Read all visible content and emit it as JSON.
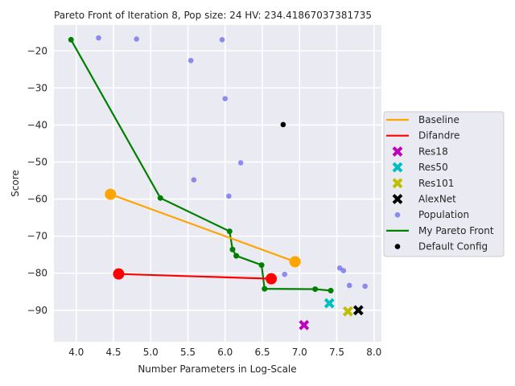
{
  "chart_data": {
    "type": "scatter",
    "title": "Pareto Front of Iteration 8, Pop size: 24 HV: 234.41867037381735",
    "xlabel": "Number Parameters in Log-Scale",
    "ylabel": "Score",
    "xlim": [
      3.7,
      8.1
    ],
    "ylim": [
      -98.5,
      -13
    ],
    "xticks": [
      4.0,
      4.5,
      5.0,
      5.5,
      6.0,
      6.5,
      7.0,
      7.5,
      8.0
    ],
    "xtick_labels": [
      "4.0",
      "4.5",
      "5.0",
      "5.5",
      "6.0",
      "6.5",
      "7.0",
      "7.5",
      "8.0"
    ],
    "yticks": [
      -90,
      -80,
      -70,
      -60,
      -50,
      -40,
      -30,
      -20
    ],
    "ytick_labels": [
      "−90",
      "−80",
      "−70",
      "−60",
      "−50",
      "−40",
      "−30",
      "−20"
    ],
    "grid": true,
    "legend_position": "right",
    "series": [
      {
        "name": "Baseline",
        "kind": "line",
        "color": "#FFA500",
        "marker": "big-circle",
        "points": [
          [
            4.46,
            -58.7
          ],
          [
            6.94,
            -76.9
          ]
        ]
      },
      {
        "name": "Difandre",
        "kind": "line",
        "color": "#FF0000",
        "marker": "big-circle",
        "points": [
          [
            4.57,
            -80.2
          ],
          [
            6.62,
            -81.5
          ]
        ]
      },
      {
        "name": "Res18",
        "kind": "x",
        "color": "#BF00BF",
        "points": [
          [
            7.06,
            -94.0
          ]
        ]
      },
      {
        "name": "Res50",
        "kind": "x",
        "color": "#00BFBF",
        "points": [
          [
            7.4,
            -88.1
          ]
        ]
      },
      {
        "name": "Res101",
        "kind": "x",
        "color": "#BFBF00",
        "points": [
          [
            7.65,
            -90.3
          ]
        ]
      },
      {
        "name": "AlexNet",
        "kind": "x",
        "color": "#000000",
        "points": [
          [
            7.79,
            -90.0
          ]
        ]
      },
      {
        "name": "Population",
        "kind": "scatter",
        "color": "#6B6BEE",
        "points": [
          [
            4.3,
            -16.5
          ],
          [
            4.81,
            -16.8
          ],
          [
            5.96,
            -17.0
          ],
          [
            5.54,
            -22.6
          ],
          [
            6.0,
            -32.9
          ],
          [
            6.21,
            -50.2
          ],
          [
            5.58,
            -54.8
          ],
          [
            6.05,
            -59.2
          ],
          [
            6.8,
            -80.3
          ],
          [
            6.91,
            -77.1
          ],
          [
            7.54,
            -78.6
          ],
          [
            7.59,
            -79.3
          ],
          [
            7.67,
            -83.3
          ],
          [
            7.88,
            -83.5
          ]
        ]
      },
      {
        "name": "My Pareto Front",
        "kind": "line",
        "color": "#008000",
        "marker": "small-circle",
        "points": [
          [
            3.93,
            -17.0
          ],
          [
            5.13,
            -59.7
          ],
          [
            6.06,
            -68.7
          ],
          [
            6.1,
            -73.6
          ],
          [
            6.15,
            -75.3
          ],
          [
            6.49,
            -77.8
          ],
          [
            6.53,
            -84.2
          ],
          [
            7.21,
            -84.3
          ],
          [
            7.42,
            -84.7
          ]
        ]
      },
      {
        "name": "Default Config",
        "kind": "scatter",
        "color": "#000000",
        "points": [
          [
            6.78,
            -39.9
          ]
        ]
      }
    ]
  }
}
